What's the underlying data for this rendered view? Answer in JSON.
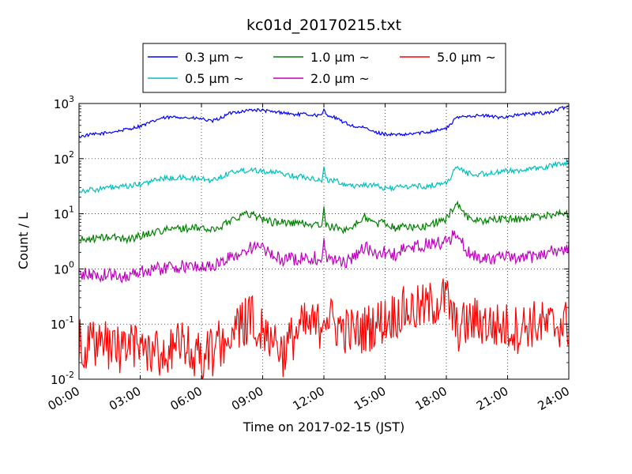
{
  "chart_data": {
    "type": "line",
    "title": "kc01d_20170215.txt",
    "xlabel": "Time on 2017-02-15 (JST)",
    "ylabel": "Count / L",
    "y_scale": "log",
    "ylim": [
      0.01,
      1000
    ],
    "xlim": [
      "00:00",
      "24:00"
    ],
    "x_ticks": [
      "00:00",
      "03:00",
      "06:00",
      "09:00",
      "12:00",
      "15:00",
      "18:00",
      "21:00",
      "24:00"
    ],
    "y_ticks": [
      {
        "base": "10",
        "exp": "-2"
      },
      {
        "base": "10",
        "exp": "-1"
      },
      {
        "base": "10",
        "exp": "0"
      },
      {
        "base": "10",
        "exp": "1"
      },
      {
        "base": "10",
        "exp": "2"
      },
      {
        "base": "10",
        "exp": "3"
      }
    ],
    "grid": true,
    "legend_placement": "top-center",
    "x_hours": [
      0,
      0.5,
      1,
      1.5,
      2,
      2.5,
      3,
      3.5,
      4,
      4.5,
      5,
      5.5,
      6,
      6.5,
      7,
      7.5,
      8,
      8.5,
      9,
      9.5,
      10,
      10.5,
      11,
      11.5,
      11.9,
      12,
      12.1,
      12.5,
      13,
      13.5,
      14,
      14.5,
      15,
      15.5,
      16,
      16.5,
      17,
      17.5,
      18,
      18.5,
      19,
      19.5,
      20,
      20.5,
      21,
      21.5,
      22,
      22.5,
      23,
      23.5,
      24
    ],
    "series": [
      {
        "name": "0.3 μm ~",
        "color": "#0000ff",
        "values": [
          250,
          270,
          280,
          300,
          320,
          350,
          390,
          450,
          540,
          560,
          570,
          540,
          530,
          470,
          560,
          690,
          720,
          770,
          750,
          700,
          690,
          630,
          640,
          620,
          600,
          780,
          640,
          560,
          450,
          380,
          360,
          300,
          280,
          270,
          270,
          290,
          300,
          330,
          350,
          550,
          600,
          600,
          600,
          560,
          580,
          620,
          640,
          670,
          680,
          780,
          900
        ]
      },
      {
        "name": "0.5 μm ~",
        "color": "#00bfbf",
        "values": [
          26,
          27,
          28,
          30,
          30,
          32,
          34,
          38,
          44,
          44,
          45,
          44,
          43,
          40,
          48,
          58,
          60,
          64,
          60,
          56,
          54,
          48,
          47,
          44,
          40,
          67,
          42,
          40,
          35,
          32,
          34,
          32,
          29,
          30,
          31,
          32,
          31,
          34,
          36,
          70,
          55,
          52,
          54,
          56,
          60,
          62,
          64,
          66,
          72,
          80,
          88
        ]
      },
      {
        "name": "1.0 μm ~",
        "color": "#008000",
        "values": [
          3.3,
          3.5,
          3.6,
          3.8,
          3.6,
          3.5,
          4.0,
          4.5,
          5.0,
          5.2,
          5.5,
          5.4,
          5.6,
          5.0,
          6.0,
          8.0,
          9.5,
          10,
          8.0,
          7.0,
          7.0,
          6.8,
          6.7,
          6.4,
          6.0,
          12,
          6.0,
          5.6,
          5.2,
          6.0,
          9.0,
          6.5,
          7.0,
          5.5,
          6.0,
          5.5,
          6.0,
          7.0,
          8.0,
          16,
          9.0,
          7.5,
          7.6,
          8.0,
          8.0,
          8.0,
          8.5,
          9.0,
          9.5,
          10,
          10
        ]
      },
      {
        "name": "2.0 μm ~",
        "color": "#bf00bf",
        "values": [
          0.8,
          0.8,
          0.75,
          0.8,
          0.7,
          0.8,
          0.9,
          1.0,
          1.0,
          1.1,
          1.1,
          1.1,
          1.1,
          1.1,
          1.3,
          1.7,
          2.0,
          2.5,
          2.3,
          1.7,
          1.5,
          1.5,
          1.6,
          1.6,
          1.5,
          3.5,
          1.7,
          1.4,
          1.3,
          1.7,
          2.5,
          1.8,
          2.0,
          1.8,
          2.3,
          2.5,
          2.8,
          2.9,
          3.0,
          4.5,
          2.0,
          1.7,
          1.6,
          1.6,
          1.6,
          1.5,
          1.6,
          1.8,
          2.0,
          2.2,
          2.2
        ]
      },
      {
        "name": "5.0 μm ~",
        "color": "#ff0000",
        "values": [
          0.05,
          0.04,
          0.04,
          0.04,
          0.035,
          0.04,
          0.04,
          0.035,
          0.03,
          0.035,
          0.04,
          0.03,
          0.025,
          0.03,
          0.05,
          0.06,
          0.1,
          0.12,
          0.09,
          0.06,
          0.03,
          0.06,
          0.09,
          0.09,
          0.1,
          0.22,
          0.15,
          0.1,
          0.08,
          0.07,
          0.08,
          0.1,
          0.12,
          0.15,
          0.18,
          0.18,
          0.2,
          0.25,
          0.3,
          0.08,
          0.1,
          0.12,
          0.1,
          0.09,
          0.09,
          0.08,
          0.1,
          0.1,
          0.09,
          0.1,
          0.1
        ]
      }
    ]
  }
}
